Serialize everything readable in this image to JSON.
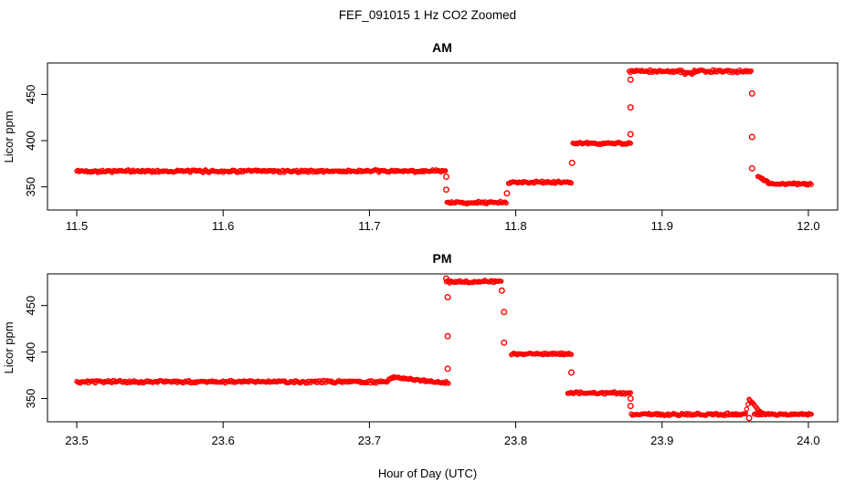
{
  "title": "FEF_091015  1 Hz CO2 Zoomed",
  "xlabel": "Hour of Day (UTC)",
  "style": {
    "point_color": "#ff0000",
    "axis_color": "#000000",
    "background": "#ffffff",
    "marker": "open-circle"
  },
  "chart_data": [
    {
      "type": "scatter",
      "title": "AM",
      "ylabel": "Licor ppm",
      "xlim": [
        11.48,
        12.02
      ],
      "ylim": [
        325,
        484
      ],
      "grid": false,
      "legend": "none",
      "x_tick_values": [
        11.5,
        11.6,
        11.7,
        11.8,
        11.9,
        12.0
      ],
      "x_tick_labels": [
        "11.5",
        "11.6",
        "11.7",
        "11.8",
        "11.9",
        "12.0"
      ],
      "y_tick_values": [
        350,
        400,
        450
      ],
      "y_tick_labels": [
        "350",
        "400",
        "450"
      ],
      "series": [
        {
          "name": "1 Hz CO2",
          "segments": [
            {
              "t0": 11.5,
              "t1": 11.752,
              "v0": 367,
              "v1": 367,
              "noise": 0.9
            },
            {
              "t0": 11.753,
              "t1": 11.7935,
              "v0": 333,
              "v1": 333,
              "noise": 0.9
            },
            {
              "t0": 11.795,
              "t1": 11.838,
              "v0": 355,
              "v1": 355,
              "noise": 0.8
            },
            {
              "t0": 11.839,
              "t1": 11.8785,
              "v0": 397,
              "v1": 397,
              "noise": 0.8
            },
            {
              "t0": 11.8775,
              "t1": 11.915,
              "v0": 475,
              "v1": 475,
              "noise": 0.9
            },
            {
              "t0": 11.915,
              "t1": 11.922,
              "v0": 472.5,
              "v1": 473,
              "noise": 0.8
            },
            {
              "t0": 11.922,
              "t1": 11.961,
              "v0": 475,
              "v1": 475,
              "noise": 0.9
            },
            {
              "t0": 11.9655,
              "t1": 11.9725,
              "v0": 362,
              "v1": 355,
              "noise": 0.7
            },
            {
              "t0": 11.9725,
              "t1": 12.002,
              "v0": 353.5,
              "v1": 353,
              "noise": 0.7
            }
          ],
          "transition_points": [
            {
              "t": 11.7525,
              "v": 361
            },
            {
              "t": 11.7525,
              "v": 347
            },
            {
              "t": 11.794,
              "v": 343
            },
            {
              "t": 11.8385,
              "v": 376
            },
            {
              "t": 11.8785,
              "v": 407
            },
            {
              "t": 11.8785,
              "v": 436
            },
            {
              "t": 11.8785,
              "v": 466
            },
            {
              "t": 11.9615,
              "v": 451
            },
            {
              "t": 11.9615,
              "v": 404
            },
            {
              "t": 11.9615,
              "v": 370
            }
          ]
        }
      ]
    },
    {
      "type": "scatter",
      "title": "PM",
      "ylabel": "Licor ppm",
      "xlim": [
        23.48,
        24.02
      ],
      "ylim": [
        325,
        484
      ],
      "grid": false,
      "legend": "none",
      "x_tick_values": [
        23.5,
        23.6,
        23.7,
        23.8,
        23.9,
        24.0
      ],
      "x_tick_labels": [
        "23.5",
        "23.6",
        "23.7",
        "23.8",
        "23.9",
        "24.0"
      ],
      "y_tick_values": [
        350,
        400,
        450
      ],
      "y_tick_labels": [
        "350",
        "400",
        "450"
      ],
      "series": [
        {
          "name": "1 Hz CO2",
          "segments": [
            {
              "t0": 23.5,
              "t1": 23.7125,
              "v0": 368,
              "v1": 368,
              "noise": 0.9
            },
            {
              "t0": 23.7125,
              "t1": 23.716,
              "v0": 369,
              "v1": 372.5,
              "noise": 0.7
            },
            {
              "t0": 23.716,
              "t1": 23.754,
              "v0": 372.5,
              "v1": 367,
              "noise": 0.8
            },
            {
              "t0": 23.7525,
              "t1": 23.79,
              "v0": 475.5,
              "v1": 475.5,
              "noise": 0.9
            },
            {
              "t0": 23.797,
              "t1": 23.838,
              "v0": 398,
              "v1": 398,
              "noise": 0.8
            },
            {
              "t0": 23.8355,
              "t1": 23.8785,
              "v0": 356,
              "v1": 356,
              "noise": 0.8
            },
            {
              "t0": 23.879,
              "t1": 23.957,
              "v0": 333,
              "v1": 333,
              "noise": 0.8
            },
            {
              "t0": 23.957,
              "t1": 23.9595,
              "v0": 334,
              "v1": 349,
              "noise": 0.7
            },
            {
              "t0": 23.9595,
              "t1": 23.968,
              "v0": 349,
              "v1": 334,
              "noise": 0.7
            },
            {
              "t0": 23.963,
              "t1": 24.002,
              "v0": 333,
              "v1": 333,
              "noise": 0.8
            }
          ],
          "transition_points": [
            {
              "t": 23.7525,
              "v": 479
            },
            {
              "t": 23.7535,
              "v": 459
            },
            {
              "t": 23.7535,
              "v": 417
            },
            {
              "t": 23.7535,
              "v": 382
            },
            {
              "t": 23.7905,
              "v": 466
            },
            {
              "t": 23.792,
              "v": 443
            },
            {
              "t": 23.792,
              "v": 410
            },
            {
              "t": 23.838,
              "v": 378
            },
            {
              "t": 23.8785,
              "v": 350
            },
            {
              "t": 23.8785,
              "v": 342
            },
            {
              "t": 23.9595,
              "v": 329
            }
          ]
        }
      ]
    }
  ]
}
